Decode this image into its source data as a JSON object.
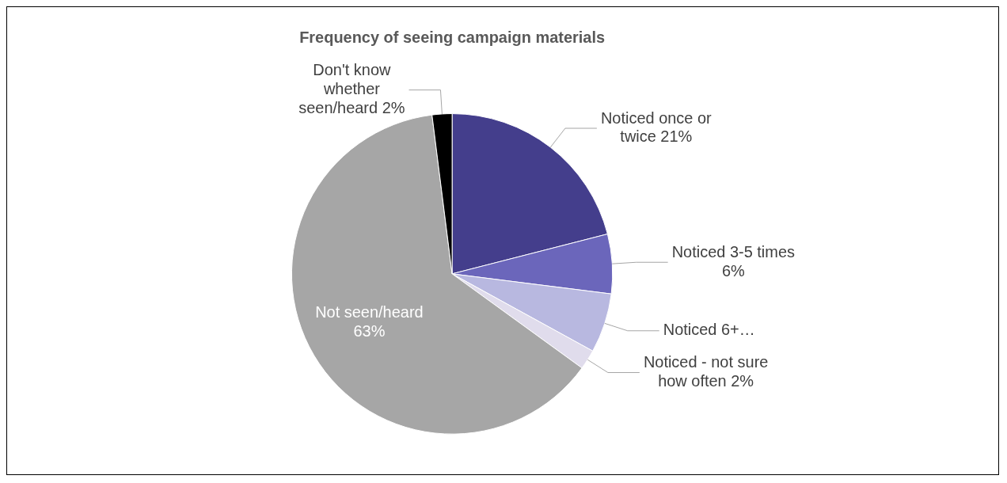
{
  "chart_data": {
    "type": "pie",
    "title": "Frequency of seeing campaign materials",
    "categories": [
      "Noticed once or twice",
      "Noticed 3-5 times",
      "Noticed 6+…",
      "Noticed - not sure how often",
      "Not seen/heard",
      "Don't know whether seen/heard"
    ],
    "values": [
      21,
      6,
      6,
      2,
      63,
      2
    ],
    "colors": [
      "#443e8c",
      "#6b66bb",
      "#b8b8e0",
      "#e0dcec",
      "#a6a6a6",
      "#000000"
    ],
    "value_labels": [
      "21%",
      "6%",
      null,
      "2%",
      "63%",
      "2%"
    ]
  }
}
